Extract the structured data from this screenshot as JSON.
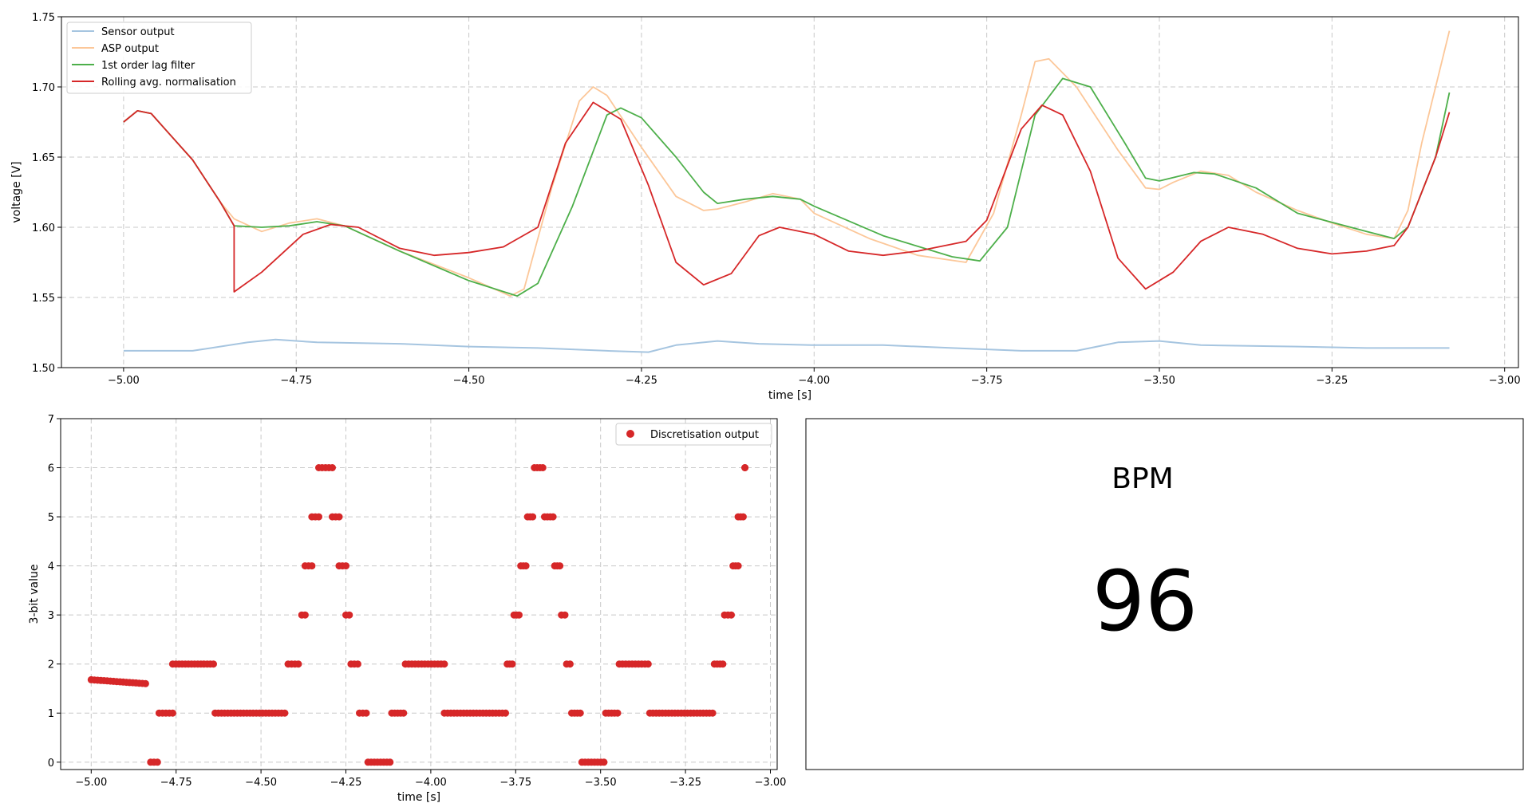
{
  "chart_data": [
    {
      "type": "line",
      "xlabel": "time [s]",
      "ylabel": "voltage [V]",
      "xlim": [
        -5.09,
        -2.98
      ],
      "ylim": [
        1.5,
        1.75
      ],
      "x_ticks": [
        -5.0,
        -4.75,
        -4.5,
        -4.25,
        -4.0,
        -3.75,
        -3.5,
        -3.25,
        -3.0
      ],
      "x_tick_labels": [
        "−5.00",
        "−4.75",
        "−4.50",
        "−4.25",
        "−4.00",
        "−3.75",
        "−3.50",
        "−3.25",
        "−3.00"
      ],
      "y_ticks": [
        1.5,
        1.55,
        1.6,
        1.65,
        1.7,
        1.75
      ],
      "y_tick_labels": [
        "1.50",
        "1.55",
        "1.60",
        "1.65",
        "1.70",
        "1.75"
      ],
      "grid": true,
      "legend_position": "top-left",
      "series": [
        {
          "name": "Sensor output",
          "color": "#a6c5e0",
          "points": [
            [
              -5.0,
              1.512
            ],
            [
              -4.9,
              1.512
            ],
            [
              -4.82,
              1.518
            ],
            [
              -4.78,
              1.52
            ],
            [
              -4.72,
              1.518
            ],
            [
              -4.6,
              1.517
            ],
            [
              -4.5,
              1.515
            ],
            [
              -4.4,
              1.514
            ],
            [
              -4.3,
              1.512
            ],
            [
              -4.24,
              1.511
            ],
            [
              -4.2,
              1.516
            ],
            [
              -4.14,
              1.519
            ],
            [
              -4.08,
              1.517
            ],
            [
              -4.0,
              1.516
            ],
            [
              -3.9,
              1.516
            ],
            [
              -3.8,
              1.514
            ],
            [
              -3.7,
              1.512
            ],
            [
              -3.62,
              1.512
            ],
            [
              -3.56,
              1.518
            ],
            [
              -3.5,
              1.519
            ],
            [
              -3.44,
              1.516
            ],
            [
              -3.3,
              1.515
            ],
            [
              -3.2,
              1.514
            ],
            [
              -3.08,
              1.514
            ]
          ]
        },
        {
          "name": "ASP output",
          "color": "#fcc799",
          "points": [
            [
              -5.0,
              1.675
            ],
            [
              -4.98,
              1.683
            ],
            [
              -4.96,
              1.681
            ],
            [
              -4.94,
              1.67
            ],
            [
              -4.9,
              1.648
            ],
            [
              -4.86,
              1.618
            ],
            [
              -4.84,
              1.606
            ],
            [
              -4.8,
              1.597
            ],
            [
              -4.76,
              1.603
            ],
            [
              -4.72,
              1.606
            ],
            [
              -4.68,
              1.601
            ],
            [
              -4.6,
              1.583
            ],
            [
              -4.5,
              1.564
            ],
            [
              -4.44,
              1.551
            ],
            [
              -4.42,
              1.556
            ],
            [
              -4.38,
              1.628
            ],
            [
              -4.34,
              1.69
            ],
            [
              -4.32,
              1.7
            ],
            [
              -4.3,
              1.694
            ],
            [
              -4.25,
              1.657
            ],
            [
              -4.2,
              1.622
            ],
            [
              -4.16,
              1.612
            ],
            [
              -4.14,
              1.613
            ],
            [
              -4.1,
              1.618
            ],
            [
              -4.06,
              1.624
            ],
            [
              -4.02,
              1.62
            ],
            [
              -4.0,
              1.61
            ],
            [
              -3.92,
              1.592
            ],
            [
              -3.85,
              1.58
            ],
            [
              -3.78,
              1.575
            ],
            [
              -3.74,
              1.61
            ],
            [
              -3.7,
              1.68
            ],
            [
              -3.68,
              1.718
            ],
            [
              -3.66,
              1.72
            ],
            [
              -3.62,
              1.7
            ],
            [
              -3.56,
              1.655
            ],
            [
              -3.52,
              1.628
            ],
            [
              -3.5,
              1.627
            ],
            [
              -3.48,
              1.632
            ],
            [
              -3.44,
              1.64
            ],
            [
              -3.4,
              1.637
            ],
            [
              -3.36,
              1.625
            ],
            [
              -3.3,
              1.612
            ],
            [
              -3.25,
              1.603
            ],
            [
              -3.2,
              1.595
            ],
            [
              -3.16,
              1.592
            ],
            [
              -3.14,
              1.612
            ],
            [
              -3.12,
              1.66
            ],
            [
              -3.1,
              1.7
            ],
            [
              -3.08,
              1.74
            ]
          ]
        },
        {
          "name": "1st order lag filter",
          "color": "#4daf4a",
          "points": [
            [
              -5.0,
              1.675
            ],
            [
              -4.98,
              1.683
            ],
            [
              -4.96,
              1.681
            ],
            [
              -4.94,
              1.67
            ],
            [
              -4.9,
              1.648
            ],
            [
              -4.86,
              1.618
            ],
            [
              -4.84,
              1.601
            ],
            [
              -4.8,
              1.6
            ],
            [
              -4.76,
              1.601
            ],
            [
              -4.72,
              1.604
            ],
            [
              -4.68,
              1.601
            ],
            [
              -4.6,
              1.583
            ],
            [
              -4.5,
              1.562
            ],
            [
              -4.43,
              1.551
            ],
            [
              -4.4,
              1.56
            ],
            [
              -4.35,
              1.615
            ],
            [
              -4.3,
              1.68
            ],
            [
              -4.28,
              1.685
            ],
            [
              -4.25,
              1.678
            ],
            [
              -4.2,
              1.65
            ],
            [
              -4.16,
              1.625
            ],
            [
              -4.14,
              1.617
            ],
            [
              -4.1,
              1.62
            ],
            [
              -4.06,
              1.622
            ],
            [
              -4.02,
              1.62
            ],
            [
              -4.0,
              1.615
            ],
            [
              -3.9,
              1.594
            ],
            [
              -3.8,
              1.579
            ],
            [
              -3.76,
              1.576
            ],
            [
              -3.72,
              1.6
            ],
            [
              -3.68,
              1.68
            ],
            [
              -3.64,
              1.706
            ],
            [
              -3.6,
              1.7
            ],
            [
              -3.55,
              1.66
            ],
            [
              -3.52,
              1.635
            ],
            [
              -3.5,
              1.633
            ],
            [
              -3.45,
              1.639
            ],
            [
              -3.42,
              1.638
            ],
            [
              -3.36,
              1.628
            ],
            [
              -3.3,
              1.61
            ],
            [
              -3.2,
              1.597
            ],
            [
              -3.16,
              1.592
            ],
            [
              -3.14,
              1.6
            ],
            [
              -3.1,
              1.65
            ],
            [
              -3.08,
              1.696
            ]
          ]
        },
        {
          "name": "Rolling avg. normalisation",
          "color": "#d62728",
          "points": [
            [
              -5.0,
              1.675
            ],
            [
              -4.98,
              1.683
            ],
            [
              -4.96,
              1.681
            ],
            [
              -4.94,
              1.67
            ],
            [
              -4.9,
              1.648
            ],
            [
              -4.86,
              1.618
            ],
            [
              -4.84,
              1.601
            ],
            [
              -4.84,
              1.554
            ],
            [
              -4.8,
              1.568
            ],
            [
              -4.74,
              1.595
            ],
            [
              -4.7,
              1.602
            ],
            [
              -4.66,
              1.6
            ],
            [
              -4.6,
              1.585
            ],
            [
              -4.55,
              1.58
            ],
            [
              -4.5,
              1.582
            ],
            [
              -4.45,
              1.586
            ],
            [
              -4.4,
              1.6
            ],
            [
              -4.36,
              1.66
            ],
            [
              -4.32,
              1.689
            ],
            [
              -4.28,
              1.677
            ],
            [
              -4.24,
              1.63
            ],
            [
              -4.2,
              1.575
            ],
            [
              -4.16,
              1.559
            ],
            [
              -4.12,
              1.567
            ],
            [
              -4.08,
              1.594
            ],
            [
              -4.05,
              1.6
            ],
            [
              -4.0,
              1.595
            ],
            [
              -3.95,
              1.583
            ],
            [
              -3.9,
              1.58
            ],
            [
              -3.85,
              1.583
            ],
            [
              -3.78,
              1.59
            ],
            [
              -3.75,
              1.605
            ],
            [
              -3.7,
              1.67
            ],
            [
              -3.67,
              1.687
            ],
            [
              -3.64,
              1.68
            ],
            [
              -3.6,
              1.64
            ],
            [
              -3.56,
              1.578
            ],
            [
              -3.52,
              1.556
            ],
            [
              -3.48,
              1.568
            ],
            [
              -3.44,
              1.59
            ],
            [
              -3.4,
              1.6
            ],
            [
              -3.35,
              1.595
            ],
            [
              -3.3,
              1.585
            ],
            [
              -3.25,
              1.581
            ],
            [
              -3.2,
              1.583
            ],
            [
              -3.16,
              1.587
            ],
            [
              -3.14,
              1.6
            ],
            [
              -3.1,
              1.65
            ],
            [
              -3.08,
              1.682
            ]
          ]
        }
      ]
    },
    {
      "type": "scatter",
      "xlabel": "time [s]",
      "ylabel": "3-bit value",
      "xlim": [
        -5.09,
        -2.98
      ],
      "ylim": [
        -0.15,
        7
      ],
      "x_ticks": [
        -5.0,
        -4.75,
        -4.5,
        -4.25,
        -4.0,
        -3.75,
        -3.5,
        -3.25,
        -3.0
      ],
      "x_tick_labels": [
        "−5.00",
        "−4.75",
        "−4.50",
        "−4.25",
        "−4.00",
        "−3.75",
        "−3.50",
        "−3.25",
        "−3.00"
      ],
      "y_ticks": [
        0,
        1,
        2,
        3,
        4,
        5,
        6,
        7
      ],
      "y_tick_labels": [
        "0",
        "1",
        "2",
        "3",
        "4",
        "5",
        "6",
        "7"
      ],
      "grid": true,
      "legend_position": "top-right",
      "series": [
        {
          "name": "Discretisation output",
          "color": "#d62728",
          "runs": [
            {
              "x0": -5.0,
              "x1": -4.84,
              "y0": 1.68,
              "y1": 1.6
            },
            {
              "x0": -4.825,
              "x1": -4.805,
              "y0": 0,
              "y1": 0
            },
            {
              "x0": -4.8,
              "x1": -4.76,
              "y0": 1,
              "y1": 1
            },
            {
              "x0": -4.76,
              "x1": -4.64,
              "y0": 2,
              "y1": 2
            },
            {
              "x0": -4.635,
              "x1": -4.43,
              "y0": 1,
              "y1": 1
            },
            {
              "x0": -4.42,
              "x1": -4.39,
              "y0": 2,
              "y1": 2
            },
            {
              "x0": -4.38,
              "x1": -4.37,
              "y0": 3,
              "y1": 3
            },
            {
              "x0": -4.37,
              "x1": -4.35,
              "y0": 4,
              "y1": 4
            },
            {
              "x0": -4.35,
              "x1": -4.33,
              "y0": 5,
              "y1": 5
            },
            {
              "x0": -4.33,
              "x1": -4.29,
              "y0": 6,
              "y1": 6
            },
            {
              "x0": -4.29,
              "x1": -4.27,
              "y0": 5,
              "y1": 5
            },
            {
              "x0": -4.27,
              "x1": -4.25,
              "y0": 4,
              "y1": 4
            },
            {
              "x0": -4.25,
              "x1": -4.24,
              "y0": 3,
              "y1": 3
            },
            {
              "x0": -4.235,
              "x1": -4.215,
              "y0": 2,
              "y1": 2
            },
            {
              "x0": -4.21,
              "x1": -4.19,
              "y0": 1,
              "y1": 1
            },
            {
              "x0": -4.185,
              "x1": -4.12,
              "y0": 0,
              "y1": 0
            },
            {
              "x0": -4.115,
              "x1": -4.08,
              "y0": 1,
              "y1": 1
            },
            {
              "x0": -4.075,
              "x1": -3.96,
              "y0": 2,
              "y1": 2
            },
            {
              "x0": -3.96,
              "x1": -3.78,
              "y0": 1,
              "y1": 1
            },
            {
              "x0": -3.775,
              "x1": -3.76,
              "y0": 2,
              "y1": 2
            },
            {
              "x0": -3.755,
              "x1": -3.74,
              "y0": 3,
              "y1": 3
            },
            {
              "x0": -3.735,
              "x1": -3.72,
              "y0": 4,
              "y1": 4
            },
            {
              "x0": -3.715,
              "x1": -3.7,
              "y0": 5,
              "y1": 5
            },
            {
              "x0": -3.695,
              "x1": -3.67,
              "y0": 6,
              "y1": 6
            },
            {
              "x0": -3.665,
              "x1": -3.64,
              "y0": 5,
              "y1": 5
            },
            {
              "x0": -3.635,
              "x1": -3.62,
              "y0": 4,
              "y1": 4
            },
            {
              "x0": -3.615,
              "x1": -3.605,
              "y0": 3,
              "y1": 3
            },
            {
              "x0": -3.6,
              "x1": -3.59,
              "y0": 2,
              "y1": 2
            },
            {
              "x0": -3.585,
              "x1": -3.56,
              "y0": 1,
              "y1": 1
            },
            {
              "x0": -3.555,
              "x1": -3.49,
              "y0": 0,
              "y1": 0
            },
            {
              "x0": -3.485,
              "x1": -3.45,
              "y0": 1,
              "y1": 1
            },
            {
              "x0": -3.445,
              "x1": -3.36,
              "y0": 2,
              "y1": 2
            },
            {
              "x0": -3.355,
              "x1": -3.17,
              "y0": 1,
              "y1": 1
            },
            {
              "x0": -3.165,
              "x1": -3.14,
              "y0": 2,
              "y1": 2
            },
            {
              "x0": -3.135,
              "x1": -3.115,
              "y0": 3,
              "y1": 3
            },
            {
              "x0": -3.11,
              "x1": -3.095,
              "y0": 4,
              "y1": 4
            },
            {
              "x0": -3.095,
              "x1": -3.08,
              "y0": 5,
              "y1": 5
            },
            {
              "x0": -3.075,
              "x1": -3.075,
              "y0": 6,
              "y1": 6
            }
          ]
        }
      ]
    }
  ],
  "bpm_panel": {
    "label": "BPM",
    "value": "96"
  }
}
